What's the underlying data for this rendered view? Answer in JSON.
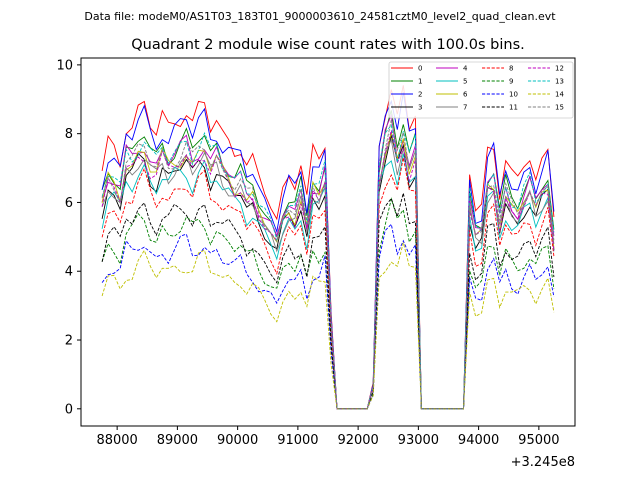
{
  "chart_data": {
    "type": "line",
    "suptitle": "Data file: modeM0/AS1T03_183T01_9000003610_24581cztM0_level2_quad_clean.evt",
    "title": "Quadrant 2 module wise count rates with 100.0s bins.",
    "xlabel": "",
    "ylabel": "",
    "x_offset_label": "+3.245e8",
    "xlim": [
      87400,
      95600
    ],
    "ylim": [
      -0.5,
      10.2
    ],
    "x_ticks": [
      88000,
      89000,
      90000,
      91000,
      92000,
      93000,
      94000,
      95000
    ],
    "x_tick_labels": [
      "88000",
      "89000",
      "90000",
      "91000",
      "92000",
      "93000",
      "94000",
      "95000"
    ],
    "y_ticks": [
      0,
      2,
      4,
      6,
      8,
      10
    ],
    "y_tick_labels": [
      "0",
      "2",
      "4",
      "6",
      "8",
      "10"
    ],
    "grid": false,
    "legend_position": "top-right",
    "x": [
      87750,
      87850,
      87950,
      88050,
      88150,
      88250,
      88350,
      88450,
      88550,
      88650,
      88750,
      88850,
      88950,
      89050,
      89150,
      89250,
      89350,
      89450,
      89550,
      89650,
      89750,
      89850,
      89950,
      90050,
      90150,
      90250,
      90350,
      90450,
      90550,
      90650,
      90750,
      90850,
      90950,
      91050,
      91150,
      91250,
      91350,
      91450,
      91550,
      91650,
      91750,
      91850,
      91950,
      92050,
      92150,
      92250,
      92350,
      92450,
      92550,
      92650,
      92750,
      92850,
      92950,
      93050,
      93150,
      93250,
      93350,
      93450,
      93550,
      93650,
      93750,
      93850,
      93950,
      94050,
      94150,
      94250,
      94350,
      94450,
      94550,
      94650,
      94750,
      94850,
      94950,
      95050,
      95150,
      95250
    ],
    "series": [
      {
        "name": "0",
        "color": "#ff0000",
        "dash": "solid",
        "base": 8.4
      },
      {
        "name": "1",
        "color": "#008000",
        "dash": "solid",
        "base": 7.6
      },
      {
        "name": "2",
        "color": "#0000ff",
        "dash": "solid",
        "base": 8.1
      },
      {
        "name": "3",
        "color": "#000000",
        "dash": "solid",
        "base": 6.9
      },
      {
        "name": "4",
        "color": "#bf00bf",
        "dash": "solid",
        "base": 7.4
      },
      {
        "name": "5",
        "color": "#00bfbf",
        "dash": "solid",
        "base": 6.7
      },
      {
        "name": "6",
        "color": "#bfbf00",
        "dash": "solid",
        "base": 7.2
      },
      {
        "name": "7",
        "color": "#808080",
        "dash": "solid",
        "base": 7.0
      },
      {
        "name": "8",
        "color": "#ff0000",
        "dash": "dashed",
        "base": 6.3
      },
      {
        "name": "9",
        "color": "#008000",
        "dash": "dashed",
        "base": 5.2
      },
      {
        "name": "10",
        "color": "#0000ff",
        "dash": "dashed",
        "base": 4.6
      },
      {
        "name": "11",
        "color": "#000000",
        "dash": "dashed",
        "base": 5.6
      },
      {
        "name": "12",
        "color": "#bf00bf",
        "dash": "dashed",
        "base": 7.1
      },
      {
        "name": "13",
        "color": "#00bfbf",
        "dash": "dashed",
        "base": 7.5
      },
      {
        "name": "14",
        "color": "#bfbf00",
        "dash": "dashed",
        "base": 4.1
      },
      {
        "name": "15",
        "color": "#808080",
        "dash": "dashed",
        "base": 7.3
      }
    ],
    "profile": [
      0.81,
      0.91,
      0.9,
      0.86,
      0.99,
      0.98,
      1.03,
      1.05,
      0.98,
      0.95,
      1.01,
      0.97,
      1.0,
      1.02,
      1.04,
      0.98,
      1.03,
      1.05,
      0.97,
      1.0,
      0.95,
      0.93,
      0.9,
      0.91,
      0.84,
      0.85,
      0.79,
      0.75,
      0.71,
      0.66,
      0.76,
      0.81,
      0.78,
      0.85,
      0.72,
      0.88,
      0.86,
      0.93,
      0.35,
      0.0,
      0.0,
      0.0,
      0.0,
      0.0,
      0.0,
      0.09,
      0.93,
      1.05,
      1.12,
      1.0,
      1.1,
      0.97,
      1.02,
      0.0,
      0.0,
      0.0,
      0.0,
      0.0,
      0.0,
      0.0,
      0.0,
      0.82,
      0.69,
      0.7,
      0.9,
      0.92,
      0.75,
      0.86,
      0.8,
      0.78,
      0.84,
      0.88,
      0.8,
      0.86,
      0.9,
      0.68
    ]
  }
}
